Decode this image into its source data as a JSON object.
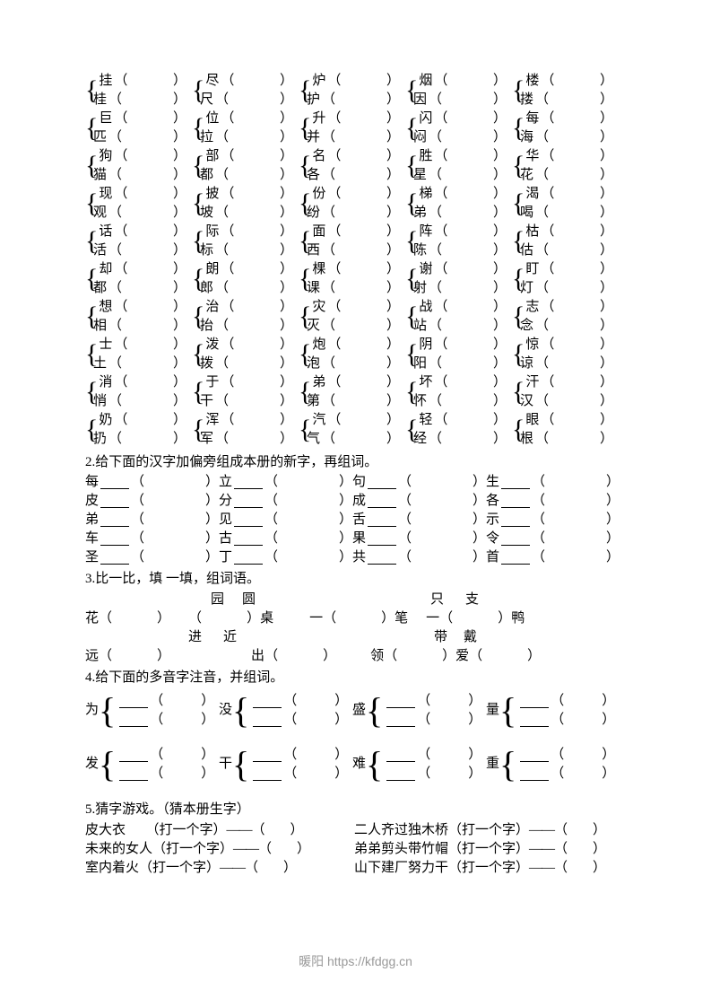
{
  "section1": {
    "pairs": [
      [
        [
          "挂",
          "桂"
        ],
        [
          "尽",
          "尺"
        ],
        [
          "炉",
          "护"
        ],
        [
          "烟",
          "因"
        ],
        [
          "楼",
          "搂"
        ]
      ],
      [
        [
          "巨",
          "匹"
        ],
        [
          "位",
          "拉"
        ],
        [
          "升",
          "并"
        ],
        [
          "闪",
          "闷"
        ],
        [
          "每",
          "海"
        ]
      ],
      [
        [
          "狗",
          "猫"
        ],
        [
          "部",
          "都"
        ],
        [
          "名",
          "各"
        ],
        [
          "胜",
          "星"
        ],
        [
          "华",
          "花"
        ]
      ],
      [
        [
          "现",
          "观"
        ],
        [
          "披",
          "坡"
        ],
        [
          "份",
          "纷"
        ],
        [
          "梯",
          "弟"
        ],
        [
          "渴",
          "喝"
        ]
      ],
      [
        [
          "话",
          "活"
        ],
        [
          "际",
          "标"
        ],
        [
          "面",
          "西"
        ],
        [
          "阵",
          "陈"
        ],
        [
          "枯",
          "估"
        ]
      ],
      [
        [
          "却",
          "都"
        ],
        [
          "朗",
          "郎"
        ],
        [
          "棵",
          "课"
        ],
        [
          "谢",
          "射"
        ],
        [
          "盯",
          "灯"
        ]
      ],
      [
        [
          "想",
          "相"
        ],
        [
          "治",
          "抬"
        ],
        [
          "灾",
          "灭"
        ],
        [
          "战",
          "站"
        ],
        [
          "志",
          "念"
        ]
      ],
      [
        [
          "士",
          "土"
        ],
        [
          "泼",
          "拨"
        ],
        [
          "炮",
          "泡"
        ],
        [
          "阴",
          "阳"
        ],
        [
          "惊",
          "谅"
        ]
      ],
      [
        [
          "消",
          "悄"
        ],
        [
          "于",
          "干"
        ],
        [
          "弟",
          "第"
        ],
        [
          "坏",
          "怀"
        ],
        [
          "汗",
          "汉"
        ]
      ],
      [
        [
          "奶",
          "扔"
        ],
        [
          "浑",
          "军"
        ],
        [
          "汽",
          "气"
        ],
        [
          "轻",
          "经"
        ],
        [
          "眼",
          "根"
        ]
      ]
    ]
  },
  "section2": {
    "title": "2.给下面的汉字加偏旁组成本册的新字，再组词。",
    "rows": [
      [
        "每",
        "立",
        "句",
        "生"
      ],
      [
        "皮",
        "分",
        "成",
        "各"
      ],
      [
        "弟",
        "见",
        "舌",
        "示"
      ],
      [
        "车",
        "古",
        "果",
        "令"
      ],
      [
        "圣",
        "丁",
        "共",
        "首"
      ]
    ]
  },
  "section3": {
    "title": "3.比一比，填 一填，组词语。",
    "group1": {
      "a": "园",
      "b": "圆",
      "c": "只",
      "d": "支"
    },
    "line2": {
      "l1": "花",
      "l2": "桌",
      "l3": "一",
      "l4": "笔",
      "l5": "一",
      "l6": "鸭"
    },
    "group2": {
      "a": "进",
      "b": "近",
      "c": "带",
      "d": "戴"
    },
    "line4": {
      "l1": "远",
      "l2": "出",
      "l3": "领",
      "l4": "爱"
    }
  },
  "section4": {
    "title": "4.给下面的多音字注音，并组词。",
    "row1": [
      "为",
      "没",
      "盛",
      "量"
    ],
    "row2": [
      "发",
      "干",
      "难",
      "重"
    ]
  },
  "section5": {
    "title": "5.猜字游戏。（猜本册生字）",
    "items": [
      [
        "皮大衣　　（打一个字）",
        "二人齐过独木桥（打一个字）"
      ],
      [
        "未来的女人（打一个字）",
        "弟弟剪头带竹帽（打一个字）"
      ],
      [
        "室内着火（打一个字）",
        "山下建厂努力干（打一个字）"
      ]
    ]
  },
  "footer": "暖阳 https://kfdgg.cn"
}
